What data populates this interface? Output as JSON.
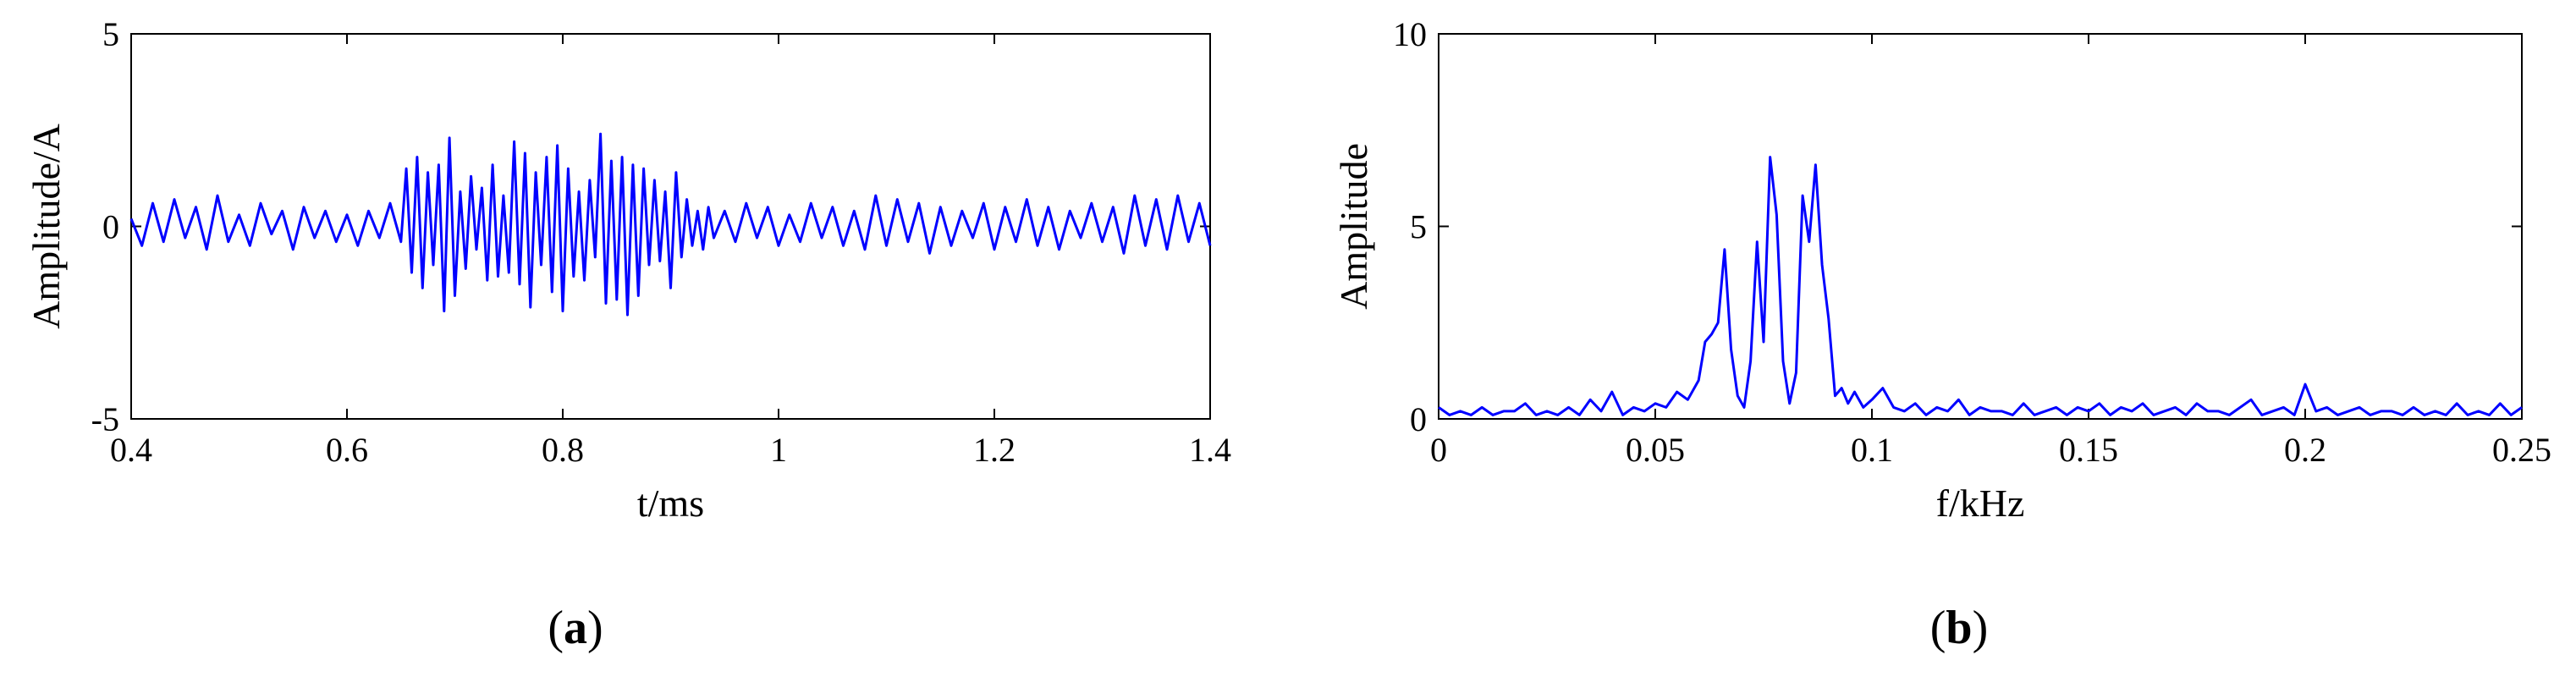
{
  "chart_data": [
    {
      "type": "line",
      "xlabel": "t/ms",
      "ylabel": "Amplitude/A",
      "xlim": [
        0.4,
        1.4
      ],
      "ylim": [
        -5,
        5
      ],
      "xticks": [
        "0.4",
        "0.6",
        "0.8",
        "1",
        "1.2",
        "1.4"
      ],
      "yticks": [
        "-5",
        "0",
        "5"
      ],
      "grid": false,
      "line_color": "#0000ff",
      "panel_label": "a",
      "series": [
        {
          "x": [
            0.4,
            0.41,
            0.42,
            0.43,
            0.44,
            0.45,
            0.46,
            0.47,
            0.48,
            0.49,
            0.5,
            0.51,
            0.52,
            0.53,
            0.54,
            0.55,
            0.56,
            0.57,
            0.58,
            0.59,
            0.6,
            0.61,
            0.62,
            0.63,
            0.64,
            0.65,
            0.655,
            0.66,
            0.665,
            0.67,
            0.675,
            0.68,
            0.685,
            0.69,
            0.695,
            0.7,
            0.705,
            0.71,
            0.715,
            0.72,
            0.725,
            0.73,
            0.735,
            0.74,
            0.745,
            0.75,
            0.755,
            0.76,
            0.765,
            0.77,
            0.775,
            0.78,
            0.785,
            0.79,
            0.795,
            0.8,
            0.805,
            0.81,
            0.815,
            0.82,
            0.825,
            0.83,
            0.835,
            0.84,
            0.845,
            0.85,
            0.855,
            0.86,
            0.865,
            0.87,
            0.875,
            0.88,
            0.885,
            0.89,
            0.895,
            0.9,
            0.905,
            0.91,
            0.915,
            0.92,
            0.925,
            0.93,
            0.935,
            0.94,
            0.95,
            0.96,
            0.97,
            0.98,
            0.99,
            1.0,
            1.01,
            1.02,
            1.03,
            1.04,
            1.05,
            1.06,
            1.07,
            1.08,
            1.09,
            1.1,
            1.11,
            1.12,
            1.13,
            1.14,
            1.15,
            1.16,
            1.17,
            1.18,
            1.19,
            1.2,
            1.21,
            1.22,
            1.23,
            1.24,
            1.25,
            1.26,
            1.27,
            1.28,
            1.29,
            1.3,
            1.31,
            1.32,
            1.33,
            1.34,
            1.35,
            1.36,
            1.37,
            1.38,
            1.39,
            1.4
          ],
          "y": [
            0.2,
            -0.5,
            0.6,
            -0.4,
            0.7,
            -0.3,
            0.5,
            -0.6,
            0.8,
            -0.4,
            0.3,
            -0.5,
            0.6,
            -0.2,
            0.4,
            -0.6,
            0.5,
            -0.3,
            0.4,
            -0.4,
            0.3,
            -0.5,
            0.4,
            -0.3,
            0.6,
            -0.4,
            1.5,
            -1.2,
            1.8,
            -1.6,
            1.4,
            -1.0,
            1.6,
            -2.2,
            2.3,
            -1.8,
            0.9,
            -1.1,
            1.3,
            -0.6,
            1.0,
            -1.4,
            1.6,
            -1.3,
            0.8,
            -1.2,
            2.2,
            -1.5,
            1.9,
            -2.1,
            1.4,
            -1.0,
            1.8,
            -1.7,
            2.1,
            -2.2,
            1.5,
            -1.3,
            0.9,
            -1.4,
            1.2,
            -0.8,
            2.4,
            -2.0,
            1.7,
            -1.9,
            1.8,
            -2.3,
            1.6,
            -1.8,
            1.5,
            -1.0,
            1.2,
            -0.9,
            0.9,
            -1.6,
            1.4,
            -0.8,
            0.7,
            -0.5,
            0.4,
            -0.6,
            0.5,
            -0.3,
            0.4,
            -0.4,
            0.6,
            -0.3,
            0.5,
            -0.5,
            0.3,
            -0.4,
            0.6,
            -0.3,
            0.5,
            -0.5,
            0.4,
            -0.6,
            0.8,
            -0.5,
            0.7,
            -0.4,
            0.6,
            -0.7,
            0.5,
            -0.5,
            0.4,
            -0.3,
            0.6,
            -0.6,
            0.5,
            -0.4,
            0.7,
            -0.5,
            0.5,
            -0.6,
            0.4,
            -0.3,
            0.6,
            -0.4,
            0.5,
            -0.7,
            0.8,
            -0.5,
            0.7,
            -0.6,
            0.8,
            -0.4,
            0.6,
            -0.5
          ]
        }
      ]
    },
    {
      "type": "line",
      "xlabel": "f/kHz",
      "ylabel": "Amplitude",
      "xlim": [
        0,
        0.25
      ],
      "ylim": [
        0,
        10
      ],
      "xticks": [
        "0",
        "0.05",
        "0.1",
        "0.15",
        "0.2",
        "0.25"
      ],
      "yticks": [
        "0",
        "5",
        "10"
      ],
      "grid": false,
      "line_color": "#0000ff",
      "panel_label": "b",
      "series": [
        {
          "x": [
            0,
            0.0025,
            0.005,
            0.0075,
            0.01,
            0.0125,
            0.015,
            0.0175,
            0.02,
            0.0225,
            0.025,
            0.0275,
            0.03,
            0.0325,
            0.035,
            0.0375,
            0.04,
            0.0425,
            0.045,
            0.0475,
            0.05,
            0.0525,
            0.055,
            0.0575,
            0.06,
            0.0615,
            0.063,
            0.0645,
            0.066,
            0.0675,
            0.069,
            0.0705,
            0.072,
            0.0735,
            0.075,
            0.0765,
            0.078,
            0.0795,
            0.081,
            0.0825,
            0.084,
            0.0855,
            0.087,
            0.0885,
            0.09,
            0.0915,
            0.093,
            0.0945,
            0.096,
            0.098,
            0.1,
            0.1025,
            0.105,
            0.1075,
            0.11,
            0.1125,
            0.115,
            0.1175,
            0.12,
            0.1225,
            0.125,
            0.1275,
            0.13,
            0.1325,
            0.135,
            0.1375,
            0.14,
            0.1425,
            0.145,
            0.1475,
            0.15,
            0.1525,
            0.155,
            0.1575,
            0.16,
            0.1625,
            0.165,
            0.1675,
            0.17,
            0.1725,
            0.175,
            0.1775,
            0.18,
            0.1825,
            0.185,
            0.1875,
            0.19,
            0.1925,
            0.195,
            0.1975,
            0.2,
            0.2025,
            0.205,
            0.2075,
            0.21,
            0.2125,
            0.215,
            0.2175,
            0.22,
            0.2225,
            0.225,
            0.2275,
            0.23,
            0.2325,
            0.235,
            0.2375,
            0.24,
            0.2425,
            0.245,
            0.2475,
            0.25
          ],
          "y": [
            0.3,
            0.1,
            0.2,
            0.1,
            0.3,
            0.1,
            0.2,
            0.2,
            0.4,
            0.1,
            0.2,
            0.1,
            0.3,
            0.1,
            0.5,
            0.2,
            0.7,
            0.1,
            0.3,
            0.2,
            0.4,
            0.3,
            0.7,
            0.5,
            1.0,
            2.0,
            2.2,
            2.5,
            4.4,
            1.8,
            0.6,
            0.3,
            1.5,
            4.6,
            2.0,
            6.8,
            5.3,
            1.5,
            0.4,
            1.2,
            5.8,
            4.6,
            6.6,
            4.0,
            2.6,
            0.6,
            0.8,
            0.4,
            0.7,
            0.3,
            0.5,
            0.8,
            0.3,
            0.2,
            0.4,
            0.1,
            0.3,
            0.2,
            0.5,
            0.1,
            0.3,
            0.2,
            0.2,
            0.1,
            0.4,
            0.1,
            0.2,
            0.3,
            0.1,
            0.3,
            0.2,
            0.4,
            0.1,
            0.3,
            0.2,
            0.4,
            0.1,
            0.2,
            0.3,
            0.1,
            0.4,
            0.2,
            0.2,
            0.1,
            0.3,
            0.5,
            0.1,
            0.2,
            0.3,
            0.1,
            0.9,
            0.2,
            0.3,
            0.1,
            0.2,
            0.3,
            0.1,
            0.2,
            0.2,
            0.1,
            0.3,
            0.1,
            0.2,
            0.1,
            0.4,
            0.1,
            0.2,
            0.1,
            0.4,
            0.1,
            0.3
          ]
        }
      ]
    }
  ]
}
